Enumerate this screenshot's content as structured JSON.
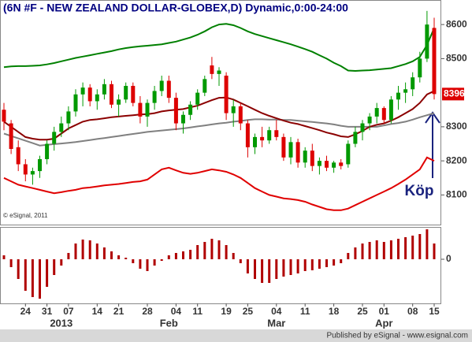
{
  "chart_data": [
    {
      "type": "candlestick",
      "title": "(6N #F - NEW ZEALAND DOLLAR-GLOBEX,D) Dynamic,0:00-24:00",
      "copyright": "© eSignal, 2011",
      "annotation": "Köp",
      "categories": [
        null,
        null,
        null,
        "24",
        null,
        null,
        "31",
        null,
        null,
        "07",
        null,
        null,
        null,
        "14",
        null,
        null,
        "21",
        null,
        null,
        null,
        "28",
        null,
        null,
        null,
        "04",
        null,
        null,
        "11",
        null,
        null,
        null,
        "19",
        null,
        null,
        "25",
        null,
        null,
        null,
        "04",
        null,
        null,
        null,
        "11",
        null,
        null,
        null,
        "18",
        null,
        null,
        null,
        "25",
        null,
        null,
        "01",
        null,
        null,
        null,
        "08",
        null,
        null,
        "15"
      ],
      "months": [
        null,
        null,
        null,
        null,
        null,
        null,
        null,
        null,
        "2013",
        null,
        null,
        null,
        null,
        null,
        null,
        null,
        null,
        null,
        null,
        null,
        null,
        null,
        null,
        "Feb",
        null,
        null,
        null,
        null,
        null,
        null,
        null,
        null,
        null,
        null,
        null,
        null,
        null,
        null,
        "Mar",
        null,
        null,
        null,
        null,
        null,
        null,
        null,
        null,
        null,
        null,
        null,
        null,
        null,
        null,
        "Apr",
        null,
        null,
        null,
        null,
        null,
        null,
        null
      ],
      "open": [
        8350,
        8310,
        8240,
        8190,
        8160,
        8170,
        8205,
        8250,
        8285,
        8310,
        8345,
        8395,
        8415,
        8375,
        8395,
        8425,
        8365,
        8380,
        8420,
        8370,
        8330,
        8370,
        8405,
        8435,
        8385,
        8310,
        8335,
        8365,
        8400,
        8480,
        8455,
        8450,
        8340,
        8360,
        8310,
        8240,
        8270,
        8260,
        8290,
        8270,
        8210,
        8255,
        8195,
        8230,
        8185,
        8200,
        8180,
        8195,
        8190,
        8250,
        8285,
        8310,
        8330,
        8355,
        8320,
        8380,
        8400,
        8410,
        8445,
        8500,
        8590
      ],
      "high": [
        8370,
        8320,
        8260,
        8205,
        8180,
        8215,
        8260,
        8300,
        8330,
        8360,
        8410,
        8430,
        8425,
        8410,
        8440,
        8435,
        8395,
        8430,
        8430,
        8390,
        8380,
        8420,
        8450,
        8450,
        8400,
        8345,
        8375,
        8410,
        8450,
        8505,
        8475,
        8460,
        8380,
        8370,
        8320,
        8280,
        8300,
        8300,
        8320,
        8280,
        8270,
        8265,
        8240,
        8250,
        8210,
        8215,
        8200,
        8205,
        8260,
        8300,
        8320,
        8340,
        8370,
        8360,
        8390,
        8420,
        8430,
        8460,
        8520,
        8640,
        8620
      ],
      "low": [
        8290,
        8220,
        8170,
        8140,
        8130,
        8150,
        8190,
        8230,
        8270,
        8290,
        8330,
        8360,
        8360,
        8350,
        8380,
        8355,
        8330,
        8370,
        8360,
        8310,
        8300,
        8350,
        8390,
        8370,
        8290,
        8280,
        8320,
        8350,
        8390,
        8440,
        8420,
        8320,
        8300,
        8290,
        8210,
        8220,
        8240,
        8250,
        8260,
        8200,
        8190,
        8180,
        8180,
        8170,
        8160,
        8170,
        8165,
        8175,
        8180,
        8240,
        8260,
        8290,
        8310,
        8310,
        8310,
        8350,
        8370,
        8390,
        8430,
        8490,
        8380
      ],
      "close": [
        8315,
        8235,
        8190,
        8160,
        8170,
        8205,
        8250,
        8285,
        8310,
        8345,
        8395,
        8415,
        8375,
        8395,
        8425,
        8365,
        8380,
        8420,
        8370,
        8330,
        8370,
        8405,
        8435,
        8385,
        8310,
        8335,
        8365,
        8400,
        8440,
        8455,
        8465,
        8340,
        8360,
        8310,
        8240,
        8270,
        8260,
        8290,
        8270,
        8210,
        8255,
        8195,
        8230,
        8185,
        8200,
        8180,
        8195,
        8185,
        8250,
        8285,
        8310,
        8330,
        8355,
        8320,
        8380,
        8400,
        8410,
        8445,
        8500,
        8600,
        8396
      ],
      "up_color": "#009900",
      "down_color": "#dd0000",
      "last_color": "#dd0000",
      "series": [
        {
          "color": "#008000",
          "values": [
            8475,
            8477,
            8478,
            8478,
            8479,
            8480,
            8483,
            8487,
            8492,
            8497,
            8502,
            8506,
            8510,
            8514,
            8518,
            8522,
            8527,
            8531,
            8534,
            8536,
            8538,
            8540,
            8542,
            8546,
            8550,
            8556,
            8562,
            8570,
            8580,
            8592,
            8600,
            8602,
            8598,
            8590,
            8580,
            8572,
            8566,
            8560,
            8554,
            8548,
            8542,
            8535,
            8528,
            8520,
            8510,
            8500,
            8488,
            8478,
            8465,
            8464,
            8465,
            8466,
            8468,
            8470,
            8472,
            8478,
            8484,
            8492,
            8505,
            8540,
            8590
          ]
        },
        {
          "color": "#e00000",
          "values": [
            8150,
            8140,
            8130,
            8125,
            8120,
            8115,
            8110,
            8105,
            8108,
            8112,
            8115,
            8120,
            8122,
            8125,
            8128,
            8130,
            8132,
            8135,
            8138,
            8140,
            8145,
            8160,
            8175,
            8180,
            8172,
            8165,
            8162,
            8165,
            8170,
            8175,
            8172,
            8168,
            8160,
            8150,
            8135,
            8120,
            8110,
            8100,
            8095,
            8090,
            8088,
            8085,
            8080,
            8072,
            8065,
            8058,
            8055,
            8055,
            8060,
            8070,
            8080,
            8090,
            8100,
            8110,
            8120,
            8132,
            8145,
            8160,
            8175,
            8210,
            8200
          ]
        },
        {
          "color": "#808080",
          "values": [
            8280,
            8273,
            8266,
            8259,
            8252,
            8245,
            8247,
            8249,
            8251,
            8253,
            8255,
            8258,
            8261,
            8264,
            8267,
            8270,
            8273,
            8276,
            8279,
            8282,
            8285,
            8287,
            8289,
            8291,
            8293,
            8295,
            8298,
            8301,
            8304,
            8307,
            8310,
            8312,
            8315,
            8317,
            8320,
            8322,
            8322,
            8321,
            8321,
            8320,
            8320,
            8318,
            8316,
            8314,
            8312,
            8310,
            8307,
            8303,
            8300,
            8300,
            8300,
            8300,
            8300,
            8304,
            8308,
            8311,
            8315,
            8321,
            8328,
            8334,
            8340
          ]
        },
        {
          "color": "#8b0000",
          "values": [
            8315,
            8300,
            8285,
            8270,
            8265,
            8262,
            8262,
            8265,
            8280,
            8295,
            8305,
            8315,
            8320,
            8322,
            8325,
            8328,
            8330,
            8332,
            8334,
            8336,
            8337,
            8340,
            8345,
            8348,
            8350,
            8352,
            8357,
            8362,
            8370,
            8378,
            8385,
            8386,
            8380,
            8370,
            8360,
            8350,
            8340,
            8332,
            8325,
            8318,
            8312,
            8308,
            8302,
            8296,
            8290,
            8283,
            8278,
            8272,
            8270,
            8278,
            8288,
            8300,
            8306,
            8310,
            8318,
            8328,
            8340,
            8352,
            8370,
            8395,
            8405
          ]
        }
      ],
      "ylim": [
        8013,
        8672
      ],
      "yticks": [
        8100,
        8200,
        8300,
        8500,
        8600
      ]
    },
    {
      "type": "bar",
      "color": "#b00000",
      "values": [
        5,
        -10,
        -25,
        -40,
        -48,
        -50,
        -35,
        -20,
        -8,
        8,
        20,
        25,
        24,
        20,
        15,
        10,
        5,
        2,
        -5,
        -12,
        -15,
        -8,
        -2,
        5,
        8,
        10,
        12,
        18,
        22,
        26,
        24,
        18,
        8,
        -5,
        -18,
        -25,
        -30,
        -30,
        -25,
        -22,
        -20,
        -18,
        -15,
        -14,
        -12,
        -10,
        -8,
        -5,
        8,
        15,
        20,
        22,
        24,
        22,
        24,
        26,
        28,
        30,
        32,
        38,
        20
      ],
      "ylim": [
        -56,
        41
      ],
      "yticks": [
        0
      ]
    }
  ],
  "footer": "Published by eSignal - www.esignal.com"
}
